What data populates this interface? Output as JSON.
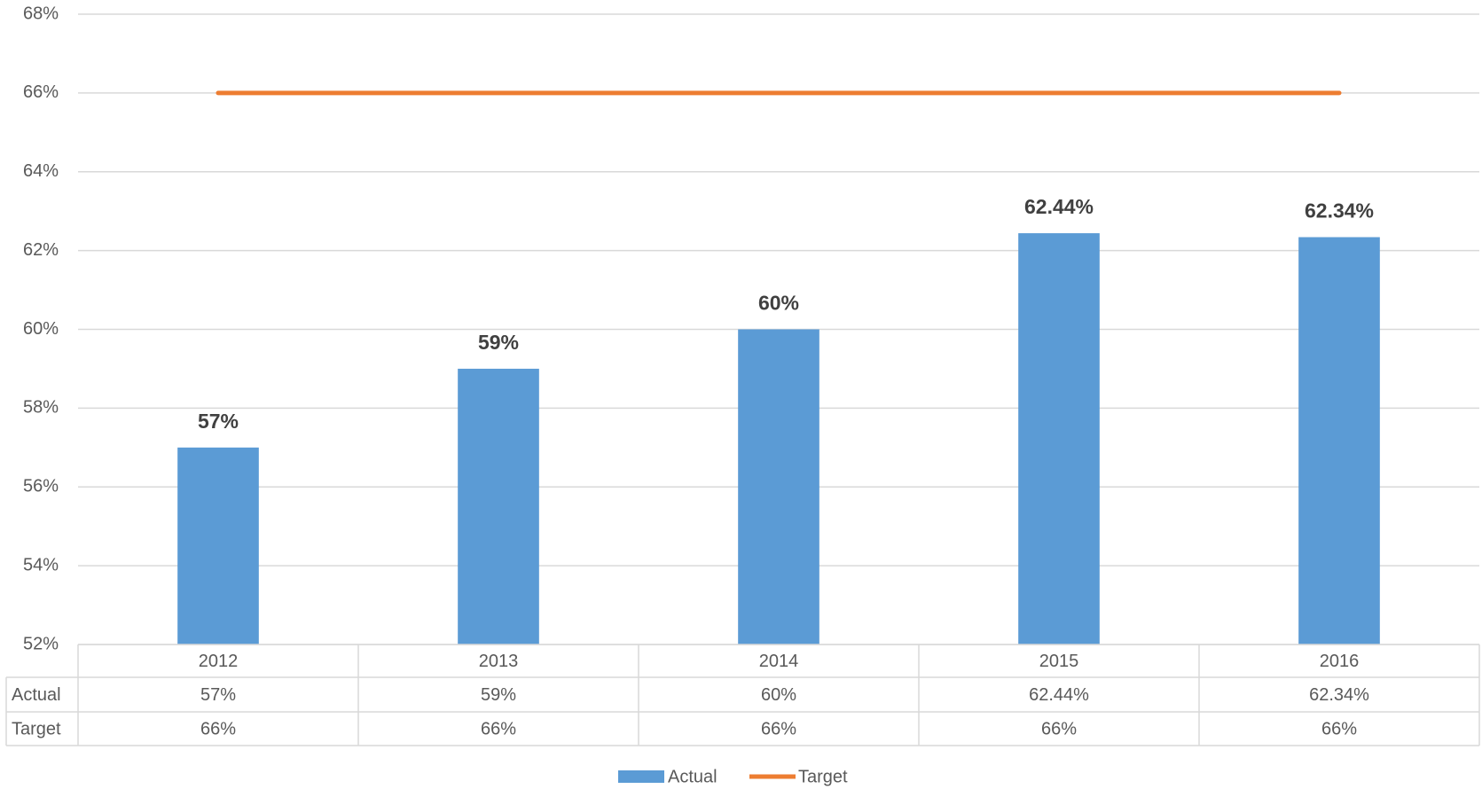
{
  "chart_data": {
    "type": "bar-line",
    "categories": [
      "2012",
      "2013",
      "2014",
      "2015",
      "2016"
    ],
    "series": [
      {
        "name": "Actual",
        "type": "bar",
        "color": "#5b9bd5",
        "values": [
          57,
          59,
          60,
          62.44,
          62.34
        ],
        "value_labels": [
          "57%",
          "59%",
          "60%",
          "62.44%",
          "62.34%"
        ]
      },
      {
        "name": "Target",
        "type": "line",
        "color": "#ed7d31",
        "values": [
          66,
          66,
          66,
          66,
          66
        ],
        "value_labels": [
          "66%",
          "66%",
          "66%",
          "66%",
          "66%"
        ]
      }
    ],
    "ylim": [
      52,
      68
    ],
    "yticks": [
      {
        "value": 52,
        "label": "52%"
      },
      {
        "value": 54,
        "label": "54%"
      },
      {
        "value": 56,
        "label": "56%"
      },
      {
        "value": 58,
        "label": "58%"
      },
      {
        "value": 60,
        "label": "60%"
      },
      {
        "value": 62,
        "label": "62%"
      },
      {
        "value": 64,
        "label": "64%"
      },
      {
        "value": 66,
        "label": "66%"
      },
      {
        "value": 68,
        "label": "68%"
      }
    ],
    "grid": true,
    "data_table": true,
    "legend": "bottom"
  }
}
